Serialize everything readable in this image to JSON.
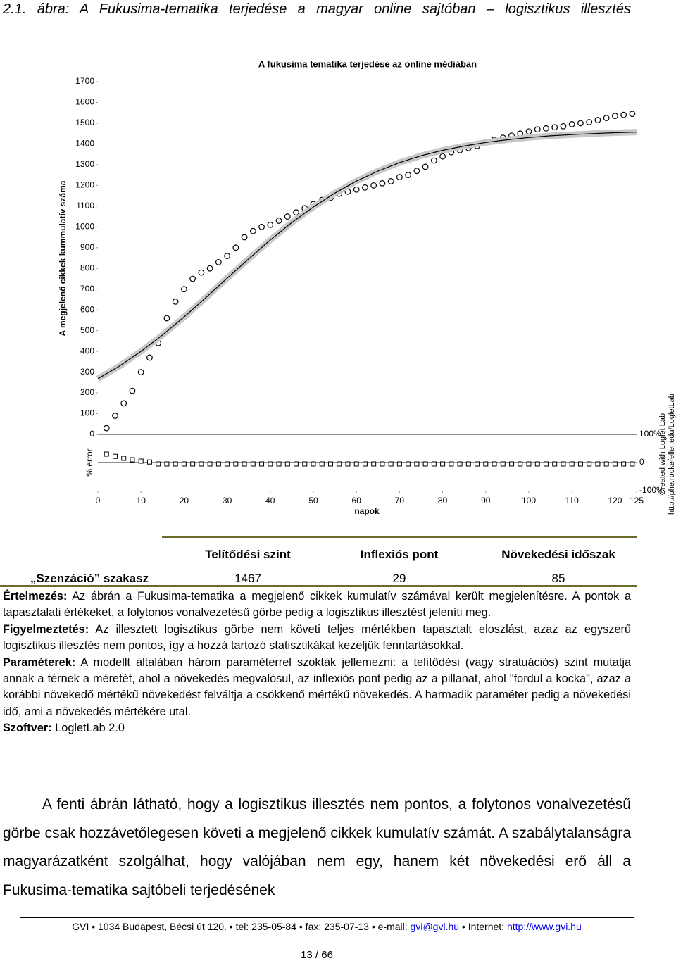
{
  "caption": "2.1. ábra: A Fukusima-tematika terjedése a magyar online sajtóban – logisztikus illesztés",
  "chart_data": [
    {
      "type": "scatter",
      "title": "A fukusima tematika terjedése az online médiában",
      "x_label": "napok",
      "y_label": "A megjelenő cikkek kummulatív száma",
      "xlim": [
        0,
        125
      ],
      "xticks": [
        0,
        10,
        20,
        30,
        40,
        50,
        60,
        70,
        80,
        90,
        100,
        110,
        120,
        125
      ],
      "ylim": [
        0,
        1700
      ],
      "yticks": [
        0,
        100,
        200,
        300,
        400,
        500,
        600,
        700,
        800,
        900,
        1000,
        1100,
        1200,
        1300,
        1400,
        1500,
        1600,
        1700
      ],
      "annotations": [
        "Created with Loglet Lab",
        "http://phe.rockefeller.edu/LogletLab"
      ],
      "series": [
        {
          "type": "scatter",
          "marker": "circle",
          "color": "#000000",
          "x": [
            2,
            4,
            6,
            8,
            10,
            12,
            14,
            16,
            18,
            20,
            22,
            24,
            26,
            28,
            30,
            32,
            34,
            36,
            38,
            40,
            42,
            44,
            46,
            48,
            50,
            52,
            54,
            56,
            58,
            60,
            62,
            64,
            66,
            68,
            70,
            72,
            74,
            76,
            78,
            80,
            82,
            84,
            86,
            88,
            90,
            92,
            94,
            96,
            98,
            100,
            102,
            104,
            106,
            108,
            110,
            112,
            114,
            116,
            118,
            120,
            122,
            124
          ],
          "values": [
            30,
            90,
            150,
            210,
            300,
            370,
            440,
            560,
            640,
            700,
            750,
            780,
            800,
            830,
            860,
            900,
            950,
            980,
            1000,
            1010,
            1030,
            1050,
            1070,
            1090,
            1110,
            1130,
            1140,
            1160,
            1170,
            1180,
            1190,
            1200,
            1210,
            1220,
            1240,
            1250,
            1270,
            1290,
            1320,
            1340,
            1360,
            1370,
            1380,
            1390,
            1410,
            1420,
            1430,
            1440,
            1450,
            1460,
            1470,
            1475,
            1480,
            1485,
            1495,
            1500,
            1505,
            1515,
            1525,
            1535,
            1540,
            1545
          ]
        },
        {
          "type": "line",
          "color": "#000000",
          "band_color": "#c8c8c8",
          "x": [
            0,
            5,
            10,
            15,
            20,
            25,
            30,
            35,
            40,
            45,
            50,
            55,
            60,
            65,
            70,
            75,
            80,
            85,
            90,
            95,
            100,
            105,
            110,
            115,
            120,
            125
          ],
          "values": [
            268,
            329,
            400,
            479,
            566,
            658,
            753,
            846,
            937,
            1021,
            1096,
            1163,
            1221,
            1269,
            1310,
            1343,
            1369,
            1390,
            1407,
            1420,
            1431,
            1439,
            1445,
            1450,
            1454,
            1457
          ]
        }
      ]
    },
    {
      "type": "scatter",
      "y_label": "% error",
      "xlim": [
        0,
        125
      ],
      "ylim": [
        -100,
        100
      ],
      "yticks": [
        {
          "value": 100,
          "label": "100%"
        },
        0,
        {
          "value": -100,
          "label": "-100%"
        }
      ],
      "series": [
        {
          "type": "scatter",
          "marker": "square",
          "color": "#000000",
          "x": [
            2,
            4,
            6,
            8,
            10,
            12,
            14,
            16,
            18,
            20,
            22,
            24,
            26,
            28,
            30,
            32,
            34,
            36,
            38,
            40,
            42,
            44,
            46,
            48,
            50,
            52,
            54,
            56,
            58,
            60,
            62,
            64,
            66,
            68,
            70,
            72,
            74,
            76,
            78,
            80,
            82,
            84,
            86,
            88,
            90,
            92,
            94,
            96,
            98,
            100,
            102,
            104,
            106,
            108,
            110,
            112,
            114,
            116,
            118,
            120,
            122,
            124
          ],
          "values": [
            30,
            22,
            15,
            10,
            5,
            2,
            -5,
            -5,
            -5,
            -5,
            -5,
            -5,
            -5,
            -5,
            -5,
            -5,
            -5,
            -5,
            -5,
            -5,
            -5,
            -5,
            -5,
            -5,
            -5,
            -5,
            -5,
            -5,
            -5,
            -5,
            -5,
            -5,
            -5,
            -5,
            -5,
            -5,
            -5,
            -5,
            -5,
            -5,
            -5,
            -5,
            -5,
            -5,
            -5,
            -5,
            -5,
            -5,
            -5,
            -5,
            -5,
            -5,
            -5,
            -5,
            -5,
            -5,
            -5,
            -5,
            -5,
            -5,
            -5,
            -5
          ]
        }
      ]
    }
  ],
  "table": {
    "header": [
      "Telítődési szint",
      "Inflexiós pont",
      "Növekedési időszak"
    ],
    "rows": [
      [
        "„Szenzáció” szakasz",
        "1467",
        "29",
        "85"
      ]
    ]
  },
  "notes": [
    {
      "label": "Értelmezés:",
      "text": "Az ábrán a Fukusima-tematika a megjelenő cikkek kumulatív számával került megjelenítésre. A pontok a tapasztalati értékeket, a folytonos vonalvezetésű görbe pedig a logisztikus illesztést jeleníti meg."
    },
    {
      "label": "Figyelmeztetés:",
      "text": "Az illesztett logisztikus görbe nem követi teljes mértékben tapasztalt eloszlást, azaz az egyszerű logisztikus illesztés nem pontos, így a hozzá tartozó statisztikákat kezeljük fenntartásokkal."
    },
    {
      "label": "Paraméterek:",
      "text": "A modellt általában három paraméterrel szokták jellemezni: a telítődési (vagy stratuációs) szint mutatja annak a térnek a méretét, ahol a növekedés megvalósul, az inflexiós pont pedig az a pillanat, ahol \"fordul a kocka\", azaz a korábbi növekedő mértékű növekedést felváltja a csökkenő mértékű növekedés. A harmadik paraméter pedig a növekedési idő, ami a növekedés mértékére utal."
    },
    {
      "label": "Szoftver:",
      "text": "LogletLab 2.0"
    }
  ],
  "body": "A fenti ábrán látható, hogy a logisztikus illesztés nem pontos, a folytonos vonalvezetésű görbe csak hozzávetőlegesen követi a megjelenő cikkek kumulatív számát. A szabálytalanságra magyarázatként szolgálhat, hogy valójában nem egy, hanem két növekedési erő áll a Fukusima-tematika sajtóbeli terjedésének",
  "footer": {
    "address": "GVI • 1034 Budapest, Bécsi út 120. • tel: 235-05-84 • fax: 235-07-13 • e-mail:",
    "email": "gvi@gvi.hu",
    "internet_label": "• Internet:",
    "url": "http://www.gvi.hu",
    "page": "13 / 66"
  }
}
